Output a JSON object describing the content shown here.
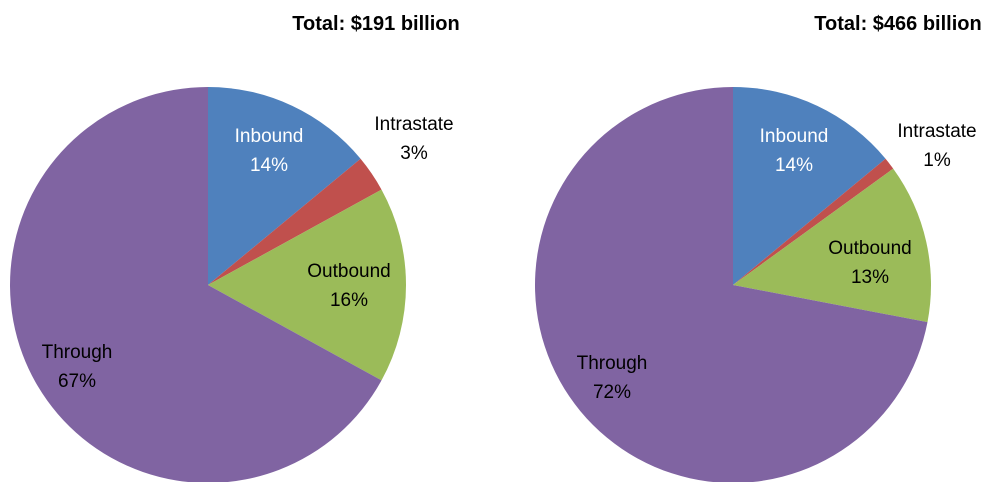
{
  "chart_data": [
    {
      "type": "pie",
      "title": "Total: $191 billion",
      "slices": [
        {
          "label": "Inbound",
          "value": 14,
          "value_text": "14%",
          "color": "#4f81bd",
          "label_color": "#ffffff"
        },
        {
          "label": "Intrastate",
          "value": 3,
          "value_text": "3%",
          "color": "#c0504d",
          "label_color": "#000000"
        },
        {
          "label": "Outbound",
          "value": 16,
          "value_text": "16%",
          "color": "#9bbb59",
          "label_color": "#000000"
        },
        {
          "label": "Through",
          "value": 67,
          "value_text": "67%",
          "color": "#8064a2",
          "label_color": "#000000"
        }
      ],
      "start_angle": "12 o'clock",
      "direction": "clockwise"
    },
    {
      "type": "pie",
      "title": "Total: $466 billion",
      "slices": [
        {
          "label": "Inbound",
          "value": 14,
          "value_text": "14%",
          "color": "#4f81bd",
          "label_color": "#ffffff"
        },
        {
          "label": "Intrastate",
          "value": 1,
          "value_text": "1%",
          "color": "#c0504d",
          "label_color": "#000000"
        },
        {
          "label": "Outbound",
          "value": 13,
          "value_text": "13%",
          "color": "#9bbb59",
          "label_color": "#000000"
        },
        {
          "label": "Through",
          "value": 72,
          "value_text": "72%",
          "color": "#8064a2",
          "label_color": "#000000"
        }
      ],
      "start_angle": "12 o'clock",
      "direction": "clockwise"
    }
  ]
}
